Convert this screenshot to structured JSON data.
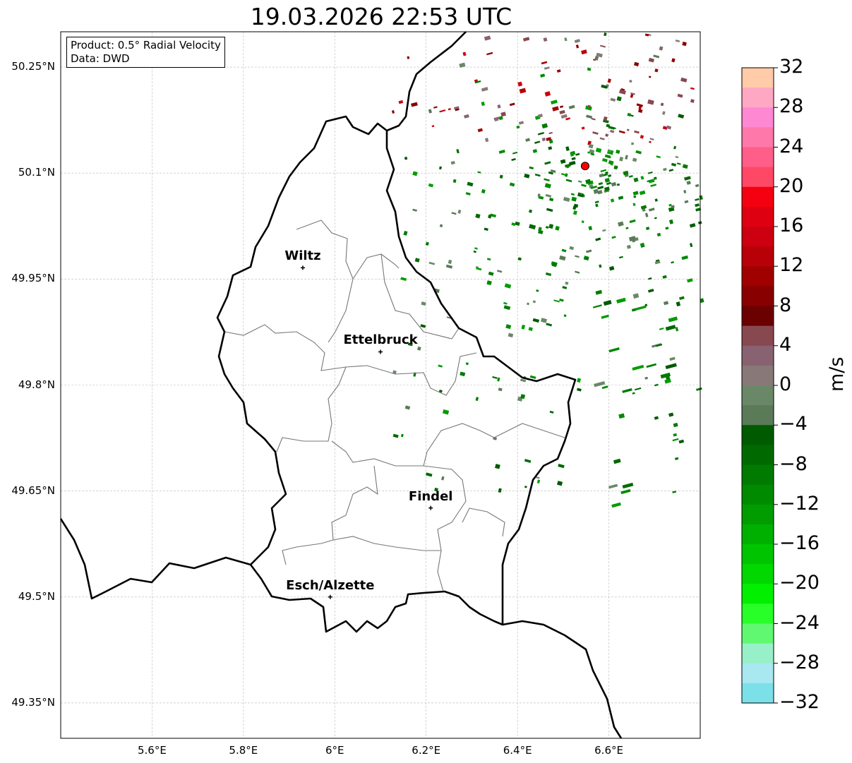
{
  "title": "19.03.2026 22:53 UTC",
  "info": {
    "product": "Product: 0.5° Radial Velocity",
    "data": "Data: DWD"
  },
  "axes": {
    "lat_ticks": [
      {
        "v": 50.25,
        "label": "50.25°N"
      },
      {
        "v": 50.1,
        "label": "50.1°N"
      },
      {
        "v": 49.95,
        "label": "49.95°N"
      },
      {
        "v": 49.8,
        "label": "49.8°N"
      },
      {
        "v": 49.65,
        "label": "49.65°N"
      },
      {
        "v": 49.5,
        "label": "49.5°N"
      },
      {
        "v": 49.35,
        "label": "49.35°N"
      }
    ],
    "lon_ticks": [
      {
        "v": 5.6,
        "label": "5.6°E"
      },
      {
        "v": 5.8,
        "label": "5.8°E"
      },
      {
        "v": 6.0,
        "label": "6°E"
      },
      {
        "v": 6.2,
        "label": "6.2°E"
      },
      {
        "v": 6.4,
        "label": "6.4°E"
      },
      {
        "v": 6.6,
        "label": "6.6°E"
      }
    ],
    "lon_range": [
      5.4,
      6.8
    ],
    "lat_range": [
      49.3,
      50.3
    ]
  },
  "cities": [
    {
      "name": "Wiltz",
      "lon": 5.93,
      "lat": 49.966
    },
    {
      "name": "Ettelbruck",
      "lon": 6.1,
      "lat": 49.847
    },
    {
      "name": "Findel",
      "lon": 6.21,
      "lat": 49.626
    },
    {
      "name": "Esch/Alzette",
      "lon": 5.99,
      "lat": 49.5
    }
  ],
  "radar_site": {
    "lon": 6.548,
    "lat": 50.11,
    "color": "#ff0000"
  },
  "colorbar": {
    "unit": "m/s",
    "min": -32,
    "max": 32,
    "ticks": [
      "32",
      "28",
      "24",
      "20",
      "16",
      "12",
      "8",
      "4",
      "0",
      "−4",
      "−8",
      "−12",
      "−16",
      "−20",
      "−24",
      "−28",
      "−32"
    ],
    "colors_top_to_bottom": [
      "#ffcba8",
      "#ffa8c4",
      "#ff88d2",
      "#ff78aa",
      "#ff5e88",
      "#ff4866",
      "#f50010",
      "#de0010",
      "#cc0010",
      "#b80008",
      "#a00000",
      "#880000",
      "#6a0000",
      "#884850",
      "#886270",
      "#887878",
      "#6a8868",
      "#5a7a58",
      "#005a00",
      "#006a00",
      "#007a00",
      "#008a00",
      "#009c00",
      "#00b000",
      "#00c400",
      "#00d800",
      "#00f000",
      "#28ff28",
      "#60f870",
      "#98f0c8",
      "#a8e8f0",
      "#7ce0e8"
    ]
  }
}
